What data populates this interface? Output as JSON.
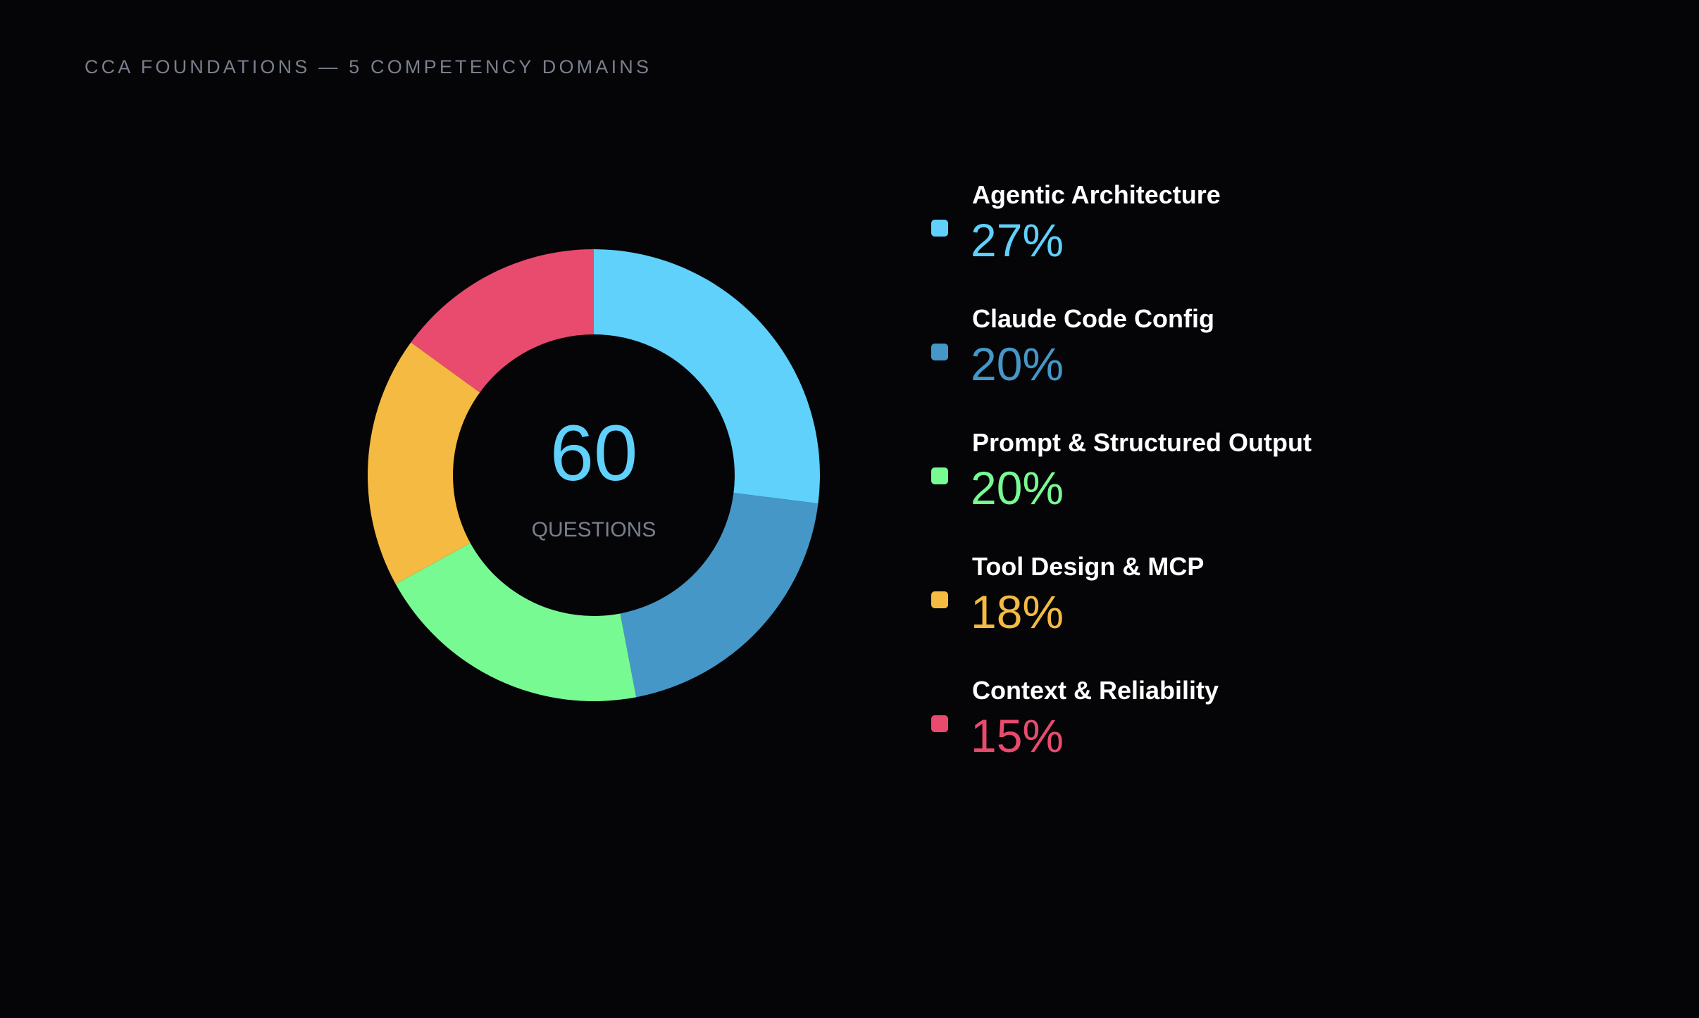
{
  "header": {
    "kicker": "CCA FOUNDATIONS — 5 COMPETENCY DOMAINS"
  },
  "center": {
    "value": "60",
    "label": "QUESTIONS",
    "value_color": "#5fd1fb",
    "label_color": "#7a7f8c"
  },
  "chart_data": {
    "type": "pie",
    "variant": "donut",
    "title": "",
    "legend_position": "right",
    "slices": [
      {
        "label": "Agentic Architecture",
        "display": "27%",
        "value": 27,
        "color": "#5fd1fb"
      },
      {
        "label": "Claude Code Config",
        "display": "20%",
        "value": 20,
        "color": "#4597c8"
      },
      {
        "label": "Prompt & Structured Output",
        "display": "20%",
        "value": 20,
        "color": "#78fa93"
      },
      {
        "label": "Tool Design & MCP",
        "display": "18%",
        "value": 18,
        "color": "#f5ba42"
      },
      {
        "label": "Context & Reliability",
        "display": "15%",
        "value": 15,
        "color": "#e84b6d"
      }
    ]
  }
}
